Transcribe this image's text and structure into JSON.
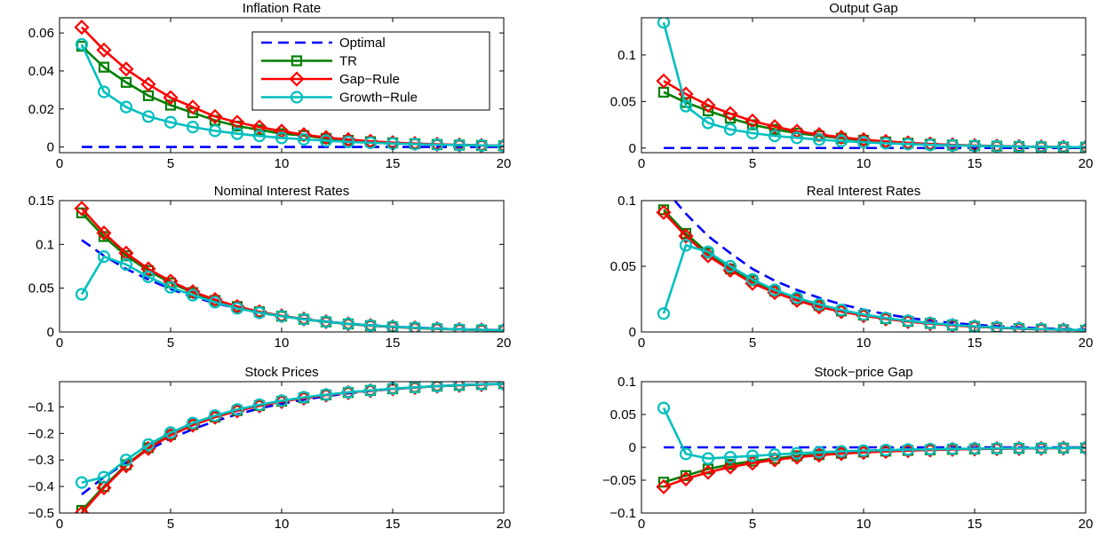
{
  "colors": {
    "Optimal": "#0000ff",
    "TR": "#007f00",
    "Gap-Rule": "#ff0000",
    "Growth-Rule": "#00bfbf"
  },
  "legend": {
    "placement": "top-right of first panel",
    "entries": [
      "Optimal",
      "TR",
      "Gap−Rule",
      "Growth−Rule"
    ]
  },
  "chart_data": [
    {
      "type": "line",
      "title": "Inflation Rate",
      "xlim": [
        0,
        20
      ],
      "ylim": [
        -0.003,
        0.068
      ],
      "xticks": [
        0,
        5,
        10,
        15,
        20
      ],
      "xtick_labels": [
        "0",
        "5",
        "10",
        "15",
        "20"
      ],
      "yticks": [
        0,
        0.02,
        0.04,
        0.06
      ],
      "ytick_labels": [
        "0",
        "0.02",
        "0.04",
        "0.06"
      ],
      "x": [
        1,
        2,
        3,
        4,
        5,
        6,
        7,
        8,
        9,
        10,
        11,
        12,
        13,
        14,
        15,
        16,
        17,
        18,
        19,
        20
      ],
      "series": [
        {
          "name": "Optimal",
          "style": "dashed",
          "marker": "none",
          "values": [
            0,
            0,
            0,
            0,
            0,
            0,
            0,
            0,
            0,
            0,
            0,
            0,
            0,
            0,
            0,
            0,
            0,
            0,
            0,
            0
          ]
        },
        {
          "name": "TR",
          "style": "solid",
          "marker": "square",
          "values": [
            0.053,
            0.042,
            0.034,
            0.027,
            0.022,
            0.018,
            0.014,
            0.011,
            0.009,
            0.007,
            0.006,
            0.0045,
            0.0035,
            0.0028,
            0.0022,
            0.0017,
            0.0013,
            0.001,
            0.0008,
            0.0006
          ]
        },
        {
          "name": "Gap−Rule",
          "style": "solid",
          "marker": "diamond",
          "values": [
            0.063,
            0.051,
            0.041,
            0.033,
            0.026,
            0.021,
            0.016,
            0.013,
            0.0105,
            0.0083,
            0.0065,
            0.005,
            0.0039,
            0.003,
            0.0023,
            0.0018,
            0.0014,
            0.0011,
            0.0008,
            0.0006
          ]
        },
        {
          "name": "Growth−Rule",
          "style": "solid",
          "marker": "circle",
          "values": [
            0.054,
            0.029,
            0.021,
            0.016,
            0.013,
            0.0105,
            0.0085,
            0.007,
            0.0058,
            0.0048,
            0.004,
            0.0033,
            0.0027,
            0.0022,
            0.0018,
            0.0015,
            0.0012,
            0.001,
            0.0008,
            0.0006
          ]
        }
      ]
    },
    {
      "type": "line",
      "title": "Output Gap",
      "xlim": [
        0,
        20
      ],
      "ylim": [
        -0.005,
        0.14
      ],
      "xticks": [
        0,
        5,
        10,
        15,
        20
      ],
      "xtick_labels": [
        "0",
        "5",
        "10",
        "15",
        "20"
      ],
      "yticks": [
        0,
        0.05,
        0.1
      ],
      "ytick_labels": [
        "0",
        "0.05",
        "0.1"
      ],
      "x": [
        1,
        2,
        3,
        4,
        5,
        6,
        7,
        8,
        9,
        10,
        11,
        12,
        13,
        14,
        15,
        16,
        17,
        18,
        19,
        20
      ],
      "series": [
        {
          "name": "Optimal",
          "style": "dashed",
          "marker": "none",
          "values": [
            0,
            0,
            0,
            0,
            0,
            0,
            0,
            0,
            0,
            0,
            0,
            0,
            0,
            0,
            0,
            0,
            0,
            0,
            0,
            0
          ]
        },
        {
          "name": "TR",
          "style": "solid",
          "marker": "square",
          "values": [
            0.06,
            0.049,
            0.04,
            0.032,
            0.025,
            0.02,
            0.016,
            0.013,
            0.0105,
            0.0083,
            0.0066,
            0.0052,
            0.0041,
            0.0032,
            0.0025,
            0.002,
            0.0016,
            0.0012,
            0.001,
            0.0008
          ]
        },
        {
          "name": "Gap−Rule",
          "style": "solid",
          "marker": "diamond",
          "values": [
            0.072,
            0.058,
            0.046,
            0.037,
            0.029,
            0.023,
            0.018,
            0.0145,
            0.0115,
            0.009,
            0.0071,
            0.0056,
            0.0044,
            0.0034,
            0.0027,
            0.0021,
            0.0016,
            0.0013,
            0.001,
            0.0008
          ]
        },
        {
          "name": "Growth−Rule",
          "style": "solid",
          "marker": "circle",
          "values": [
            0.135,
            0.045,
            0.027,
            0.02,
            0.016,
            0.013,
            0.011,
            0.009,
            0.0075,
            0.0062,
            0.0051,
            0.0042,
            0.0034,
            0.0028,
            0.0023,
            0.0019,
            0.0015,
            0.0012,
            0.001,
            0.0008
          ]
        }
      ]
    },
    {
      "type": "line",
      "title": "Nominal Interest Rates",
      "xlim": [
        0,
        20
      ],
      "ylim": [
        0,
        0.15
      ],
      "xticks": [
        0,
        5,
        10,
        15,
        20
      ],
      "xtick_labels": [
        "0",
        "5",
        "10",
        "15",
        "20"
      ],
      "yticks": [
        0,
        0.05,
        0.1,
        0.15
      ],
      "ytick_labels": [
        "0",
        "0.05",
        "0.1",
        "0.15"
      ],
      "x": [
        1,
        2,
        3,
        4,
        5,
        6,
        7,
        8,
        9,
        10,
        11,
        12,
        13,
        14,
        15,
        16,
        17,
        18,
        19,
        20
      ],
      "series": [
        {
          "name": "Optimal",
          "style": "dashed",
          "marker": "none",
          "values": [
            0.105,
            0.087,
            0.072,
            0.06,
            0.049,
            0.04,
            0.033,
            0.027,
            0.022,
            0.018,
            0.015,
            0.012,
            0.0095,
            0.0077,
            0.0062,
            0.005,
            0.004,
            0.0032,
            0.0026,
            0.0021
          ]
        },
        {
          "name": "TR",
          "style": "solid",
          "marker": "square",
          "values": [
            0.136,
            0.109,
            0.087,
            0.07,
            0.056,
            0.045,
            0.036,
            0.029,
            0.023,
            0.018,
            0.0145,
            0.0115,
            0.0091,
            0.0072,
            0.0057,
            0.0045,
            0.0036,
            0.0028,
            0.0022,
            0.0018
          ]
        },
        {
          "name": "Gap−Rule",
          "style": "solid",
          "marker": "diamond",
          "values": [
            0.141,
            0.113,
            0.09,
            0.072,
            0.058,
            0.046,
            0.037,
            0.029,
            0.023,
            0.0185,
            0.0148,
            0.0117,
            0.0093,
            0.0074,
            0.0058,
            0.0046,
            0.0036,
            0.0029,
            0.0023,
            0.0018
          ]
        },
        {
          "name": "Growth−Rule",
          "style": "solid",
          "marker": "circle",
          "values": [
            0.043,
            0.086,
            0.077,
            0.063,
            0.051,
            0.042,
            0.034,
            0.027,
            0.022,
            0.018,
            0.0145,
            0.0117,
            0.0094,
            0.0075,
            0.006,
            0.0048,
            0.0038,
            0.003,
            0.0024,
            0.0019
          ]
        }
      ]
    },
    {
      "type": "line",
      "title": "Real Interest Rates",
      "xlim": [
        0,
        20
      ],
      "ylim": [
        0,
        0.1
      ],
      "xticks": [
        0,
        5,
        10,
        15,
        20
      ],
      "xtick_labels": [
        "0",
        "5",
        "10",
        "15",
        "20"
      ],
      "yticks": [
        0,
        0.05,
        0.1
      ],
      "ytick_labels": [
        "0",
        "0.05",
        "0.1"
      ],
      "x": [
        1,
        2,
        3,
        4,
        5,
        6,
        7,
        8,
        9,
        10,
        11,
        12,
        13,
        14,
        15,
        16,
        17,
        18,
        19,
        20
      ],
      "series": [
        {
          "name": "Optimal",
          "style": "dashed",
          "marker": "none",
          "values": [
            0.11,
            0.09,
            0.073,
            0.06,
            0.048,
            0.039,
            0.032,
            0.026,
            0.021,
            0.017,
            0.0135,
            0.0108,
            0.0086,
            0.0069,
            0.0055,
            0.0044,
            0.0035,
            0.0028,
            0.0022,
            0.0018
          ]
        },
        {
          "name": "TR",
          "style": "solid",
          "marker": "square",
          "values": [
            0.093,
            0.075,
            0.06,
            0.048,
            0.039,
            0.031,
            0.025,
            0.02,
            0.016,
            0.0128,
            0.0102,
            0.0081,
            0.0065,
            0.0052,
            0.0041,
            0.0033,
            0.0026,
            0.0021,
            0.0017,
            0.0013
          ]
        },
        {
          "name": "Gap−Rule",
          "style": "solid",
          "marker": "diamond",
          "values": [
            0.091,
            0.073,
            0.058,
            0.047,
            0.037,
            0.03,
            0.024,
            0.019,
            0.0155,
            0.0124,
            0.0099,
            0.0079,
            0.0063,
            0.005,
            0.004,
            0.0032,
            0.0025,
            0.002,
            0.0016,
            0.0013
          ]
        },
        {
          "name": "Growth−Rule",
          "style": "solid",
          "marker": "circle",
          "values": [
            0.014,
            0.066,
            0.061,
            0.05,
            0.04,
            0.032,
            0.026,
            0.021,
            0.0167,
            0.0133,
            0.0106,
            0.0085,
            0.0068,
            0.0054,
            0.0043,
            0.0034,
            0.0027,
            0.0022,
            0.0017,
            0.0014
          ]
        }
      ]
    },
    {
      "type": "line",
      "title": "Stock Prices",
      "xlim": [
        0,
        20
      ],
      "ylim": [
        -0.5,
        -0.005
      ],
      "xticks": [
        0,
        5,
        10,
        15,
        20
      ],
      "xtick_labels": [
        "0",
        "5",
        "10",
        "15",
        "20"
      ],
      "yticks": [
        -0.5,
        -0.4,
        -0.3,
        -0.2,
        -0.1
      ],
      "ytick_labels": [
        "−0.5",
        "−0.4",
        "−0.3",
        "−0.2",
        "−0.1"
      ],
      "x": [
        1,
        2,
        3,
        4,
        5,
        6,
        7,
        8,
        9,
        10,
        11,
        12,
        13,
        14,
        15,
        16,
        17,
        18,
        19,
        20
      ],
      "series": [
        {
          "name": "Optimal",
          "style": "dashed",
          "marker": "none",
          "values": [
            -0.43,
            -0.365,
            -0.31,
            -0.262,
            -0.22,
            -0.184,
            -0.154,
            -0.128,
            -0.106,
            -0.088,
            -0.073,
            -0.06,
            -0.049,
            -0.04,
            -0.033,
            -0.027,
            -0.022,
            -0.018,
            -0.015,
            -0.013
          ]
        },
        {
          "name": "TR",
          "style": "solid",
          "marker": "square",
          "values": [
            -0.49,
            -0.4,
            -0.318,
            -0.254,
            -0.205,
            -0.167,
            -0.138,
            -0.114,
            -0.095,
            -0.079,
            -0.066,
            -0.055,
            -0.046,
            -0.038,
            -0.032,
            -0.027,
            -0.022,
            -0.019,
            -0.016,
            -0.013
          ]
        },
        {
          "name": "Gap−Rule",
          "style": "solid",
          "marker": "diamond",
          "values": [
            -0.5,
            -0.405,
            -0.322,
            -0.257,
            -0.207,
            -0.169,
            -0.139,
            -0.115,
            -0.096,
            -0.08,
            -0.067,
            -0.056,
            -0.046,
            -0.039,
            -0.032,
            -0.027,
            -0.022,
            -0.019,
            -0.016,
            -0.013
          ]
        },
        {
          "name": "Growth−Rule",
          "style": "solid",
          "marker": "circle",
          "values": [
            -0.385,
            -0.365,
            -0.3,
            -0.242,
            -0.197,
            -0.161,
            -0.133,
            -0.11,
            -0.092,
            -0.077,
            -0.064,
            -0.054,
            -0.045,
            -0.038,
            -0.031,
            -0.026,
            -0.022,
            -0.018,
            -0.015,
            -0.013
          ]
        }
      ]
    },
    {
      "type": "line",
      "title": "Stock−price Gap",
      "xlim": [
        0,
        20
      ],
      "ylim": [
        -0.1,
        0.1
      ],
      "xticks": [
        0,
        5,
        10,
        15,
        20
      ],
      "xtick_labels": [
        "0",
        "5",
        "10",
        "15",
        "20"
      ],
      "yticks": [
        -0.1,
        -0.05,
        0,
        0.05,
        0.1
      ],
      "ytick_labels": [
        "−0.1",
        "−0.05",
        "0",
        "0.05",
        "0.1"
      ],
      "x": [
        1,
        2,
        3,
        4,
        5,
        6,
        7,
        8,
        9,
        10,
        11,
        12,
        13,
        14,
        15,
        16,
        17,
        18,
        19,
        20
      ],
      "series": [
        {
          "name": "Optimal",
          "style": "dashed",
          "marker": "none",
          "values": [
            0,
            0,
            0,
            0,
            0,
            0,
            0,
            0,
            0,
            0,
            0,
            0,
            0,
            0,
            0,
            0,
            0,
            0,
            0,
            0
          ]
        },
        {
          "name": "TR",
          "style": "solid",
          "marker": "square",
          "values": [
            -0.053,
            -0.043,
            -0.033,
            -0.026,
            -0.021,
            -0.017,
            -0.013,
            -0.011,
            -0.009,
            -0.0072,
            -0.0058,
            -0.0047,
            -0.0038,
            -0.0031,
            -0.0025,
            -0.002,
            -0.0016,
            -0.0013,
            -0.0011,
            -0.0009
          ]
        },
        {
          "name": "Gap−Rule",
          "style": "solid",
          "marker": "diamond",
          "values": [
            -0.06,
            -0.048,
            -0.038,
            -0.03,
            -0.024,
            -0.019,
            -0.015,
            -0.012,
            -0.0096,
            -0.0077,
            -0.0062,
            -0.005,
            -0.004,
            -0.0032,
            -0.0026,
            -0.0021,
            -0.0017,
            -0.0014,
            -0.0011,
            -0.0009
          ]
        },
        {
          "name": "Growth−Rule",
          "style": "solid",
          "marker": "circle",
          "values": [
            0.06,
            -0.01,
            -0.017,
            -0.015,
            -0.013,
            -0.011,
            -0.009,
            -0.0074,
            -0.0061,
            -0.005,
            -0.0041,
            -0.0034,
            -0.0028,
            -0.0023,
            -0.0019,
            -0.0016,
            -0.0013,
            -0.0011,
            -0.0009,
            -0.0008
          ]
        }
      ]
    }
  ]
}
